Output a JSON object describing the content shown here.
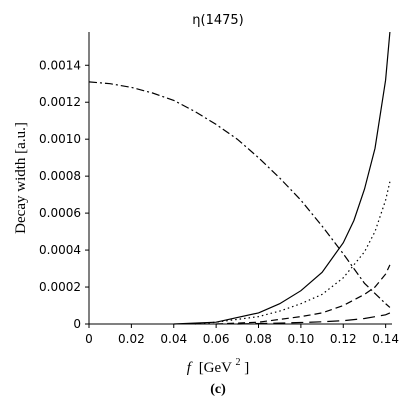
{
  "chart_data": {
    "type": "line",
    "title": "η(1475)",
    "xlabel_var": "f",
    "xlabel_unit": "[GeV",
    "xlabel_sup": "2",
    "xlabel_close": "]",
    "ylabel": "Decay width [a.u.]",
    "panel_label": "(c)",
    "xlim": [
      0,
      0.143
    ],
    "ylim": [
      0,
      0.00158
    ],
    "x_ticks": [
      0,
      0.02,
      0.04,
      0.06,
      0.08,
      0.1,
      0.12,
      0.14
    ],
    "x_tick_labels": [
      "0",
      "0.02",
      "0.04",
      "0.06",
      "0.08",
      "0.10",
      "0.12",
      "0.14"
    ],
    "y_ticks": [
      0,
      0.0002,
      0.0004,
      0.0006,
      0.0008,
      0.001,
      0.0012,
      0.0014
    ],
    "y_tick_labels": [
      "0",
      "0.0002",
      "0.0004",
      "0.0006",
      "0.0008",
      "0.0010",
      "0.0012",
      "0.0014"
    ],
    "grid": false,
    "series": [
      {
        "style": "solid",
        "x": [
          0.04,
          0.06,
          0.08,
          0.09,
          0.1,
          0.11,
          0.12,
          0.125,
          0.13,
          0.135,
          0.14,
          0.142
        ],
        "y": [
          0,
          1e-05,
          6e-05,
          0.00011,
          0.00018,
          0.00028,
          0.00044,
          0.00056,
          0.00073,
          0.00095,
          0.00132,
          0.00158
        ]
      },
      {
        "style": "dotted",
        "x": [
          0.05,
          0.06,
          0.08,
          0.09,
          0.1,
          0.11,
          0.12,
          0.13,
          0.135,
          0.14,
          0.142
        ],
        "y": [
          0,
          1e-05,
          4e-05,
          7e-05,
          0.00011,
          0.00016,
          0.00025,
          0.00039,
          0.0005,
          0.00067,
          0.00077
        ]
      },
      {
        "style": "dashed",
        "x": [
          0.06,
          0.08,
          0.1,
          0.11,
          0.12,
          0.13,
          0.135,
          0.14,
          0.142
        ],
        "y": [
          0,
          1e-05,
          4e-05,
          6e-05,
          0.0001,
          0.00016,
          0.0002,
          0.00027,
          0.00032
        ]
      },
      {
        "style": "long-dash",
        "x": [
          0.07,
          0.09,
          0.1,
          0.11,
          0.12,
          0.13,
          0.14,
          0.142
        ],
        "y": [
          0,
          5e-06,
          8e-06,
          1.2e-05,
          1.8e-05,
          3e-05,
          5e-05,
          6e-05
        ]
      },
      {
        "style": "dash-dot",
        "x": [
          0,
          0.01,
          0.02,
          0.03,
          0.04,
          0.05,
          0.06,
          0.07,
          0.08,
          0.09,
          0.1,
          0.11,
          0.12,
          0.13,
          0.14,
          0.142
        ],
        "y": [
          0.00131,
          0.0013,
          0.00128,
          0.00125,
          0.00121,
          0.00115,
          0.00108,
          0.001,
          0.0009,
          0.00079,
          0.00067,
          0.00053,
          0.00038,
          0.00022,
          0.00011,
          9e-05
        ]
      }
    ]
  }
}
